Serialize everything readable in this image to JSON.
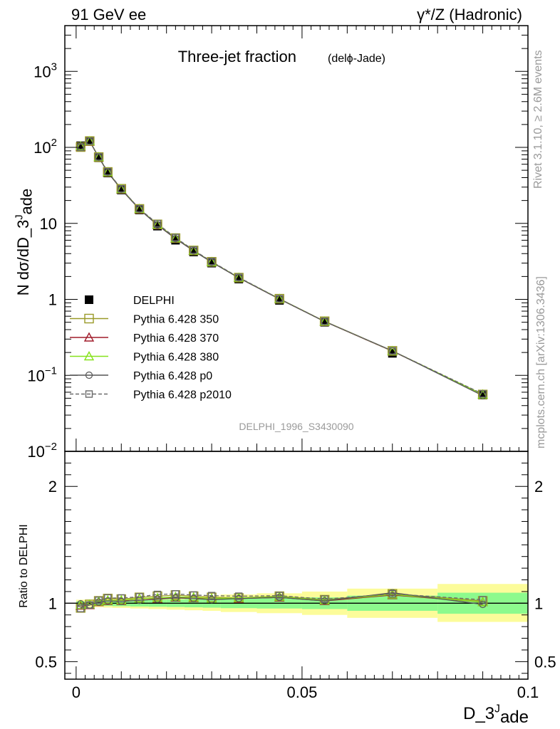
{
  "header": {
    "left": "91 GeV ee",
    "right": "γ*/Z (Hadronic)"
  },
  "side_labels": {
    "rivet": "Rivet 3.1.10, ≥ 2.6M events",
    "mcplots": "mcplots.cern.ch [arXiv:1306.3436]"
  },
  "colors": {
    "p350": "#9a9a28",
    "p370": "#a01b2a",
    "p380": "#86e21b",
    "p0": "#555555",
    "p2010": "#6a6a6a",
    "band_inner": "#8dfa8d",
    "band_outer": "#fcfc9a",
    "data": "#000000",
    "watermark": "#9a9a9a"
  },
  "chart_data": [
    {
      "type": "line",
      "title": "Three-jet fraction",
      "title_suffix": "(delϕ-Jade)",
      "analysis_id": "DELPHI_1996_S3430090",
      "ylabel": "N dσ/dD_3^Jade",
      "yscale": "log",
      "ylim": [
        0.01,
        4000
      ],
      "xlim": [
        -0.0025,
        0.1
      ],
      "yticks": [
        {
          "v": 0.01,
          "base": "10",
          "exp": "−2"
        },
        {
          "v": 0.1,
          "base": "10",
          "exp": "−1"
        },
        {
          "v": 1,
          "base": "1",
          "exp": ""
        },
        {
          "v": 10,
          "base": "10",
          "exp": ""
        },
        {
          "v": 100,
          "base": "10",
          "exp": "2"
        },
        {
          "v": 1000,
          "base": "10",
          "exp": "3"
        }
      ],
      "legend": [
        "DELPHI",
        "Pythia 6.428 350",
        "Pythia 6.428 370",
        "Pythia 6.428 380",
        "Pythia 6.428 p0",
        "Pythia 6.428 p2010"
      ],
      "legend_position": "left",
      "x": [
        0.001,
        0.003,
        0.005,
        0.007,
        0.01,
        0.014,
        0.018,
        0.022,
        0.026,
        0.03,
        0.036,
        0.045,
        0.055,
        0.07,
        0.09
      ],
      "series": [
        {
          "name": "DELPHI",
          "key": "data",
          "marker": "filled-square",
          "values": [
            105,
            122,
            73,
            46,
            27.5,
            15,
            9.2,
            6.0,
            4.2,
            3.0,
            1.85,
            0.97,
            0.5,
            0.195,
            0.055
          ]
        },
        {
          "name": "Pythia 6.428 350",
          "key": "p350",
          "marker": "open-square",
          "values": [
            101,
            121,
            74.5,
            47.5,
            28.5,
            15.5,
            9.7,
            6.4,
            4.4,
            3.12,
            1.93,
            1.02,
            0.515,
            0.21,
            0.056
          ]
        },
        {
          "name": "Pythia 6.428 370",
          "key": "p370",
          "marker": "open-triangle",
          "values": [
            103,
            120,
            74.0,
            47.0,
            28.0,
            15.4,
            9.5,
            6.3,
            4.35,
            3.1,
            1.92,
            1.01,
            0.51,
            0.208,
            0.056
          ]
        },
        {
          "name": "Pythia 6.428 380",
          "key": "p380",
          "marker": "open-triangle",
          "values": [
            104,
            121,
            74.5,
            47.2,
            28.2,
            15.5,
            9.6,
            6.35,
            4.38,
            3.1,
            1.93,
            1.015,
            0.512,
            0.209,
            0.056
          ]
        },
        {
          "name": "Pythia 6.428 p0",
          "key": "p0",
          "marker": "open-circle",
          "values": [
            104.5,
            120,
            74.0,
            47.0,
            28.0,
            15.3,
            9.5,
            6.3,
            4.35,
            3.08,
            1.92,
            1.01,
            0.51,
            0.21,
            0.054
          ]
        },
        {
          "name": "Pythia 6.428 p2010",
          "key": "p2010",
          "marker": "open-square-dashed",
          "values": [
            100,
            121,
            75.0,
            48.0,
            28.5,
            15.6,
            9.9,
            6.5,
            4.45,
            3.15,
            1.95,
            1.02,
            0.515,
            0.21,
            0.057
          ]
        }
      ]
    },
    {
      "type": "line",
      "ylabel": "Ratio to DELPHI",
      "xlabel": "D_3^Jade",
      "ylim": [
        0.35,
        2.3
      ],
      "yticks": [
        0.5,
        1,
        2
      ],
      "ytick_labels": [
        "0.5",
        "1",
        "2"
      ],
      "xticks": [
        0,
        0.05,
        0.1
      ],
      "xtick_labels": [
        "0",
        "0.05",
        "0.1"
      ],
      "bands": {
        "edges": [
          0,
          0.002,
          0.004,
          0.006,
          0.008,
          0.012,
          0.016,
          0.02,
          0.024,
          0.028,
          0.032,
          0.04,
          0.05,
          0.06,
          0.08,
          0.1
        ],
        "inner": [
          0.985,
          0.983,
          0.98,
          0.978,
          0.975,
          0.972,
          0.97,
          0.968,
          0.965,
          0.962,
          0.958,
          0.955,
          0.95,
          0.935,
          0.91
        ],
        "inner_hi": [
          1.015,
          1.017,
          1.02,
          1.022,
          1.025,
          1.028,
          1.03,
          1.032,
          1.035,
          1.038,
          1.042,
          1.045,
          1.05,
          1.065,
          1.09
        ],
        "outer": [
          0.97,
          0.968,
          0.966,
          0.963,
          0.96,
          0.955,
          0.95,
          0.945,
          0.94,
          0.935,
          0.925,
          0.915,
          0.9,
          0.875,
          0.84
        ],
        "outer_hi": [
          1.03,
          1.032,
          1.034,
          1.037,
          1.04,
          1.045,
          1.05,
          1.055,
          1.06,
          1.065,
          1.075,
          1.085,
          1.1,
          1.125,
          1.165
        ]
      },
      "series": [
        {
          "name": "Pythia 6.428 350",
          "key": "p350",
          "values": [
            0.96,
            0.99,
            1.02,
            1.04,
            1.035,
            1.05,
            1.06,
            1.07,
            1.06,
            1.05,
            1.045,
            1.06,
            1.03,
            1.08,
            1.02
          ]
        },
        {
          "name": "Pythia 6.428 370",
          "key": "p370",
          "values": [
            0.98,
            0.985,
            1.01,
            1.02,
            1.02,
            1.04,
            1.04,
            1.05,
            1.045,
            1.04,
            1.04,
            1.05,
            1.02,
            1.07,
            1.01
          ]
        },
        {
          "name": "Pythia 6.428 380",
          "key": "p380",
          "values": [
            0.985,
            0.99,
            1.015,
            1.025,
            1.025,
            1.04,
            1.045,
            1.055,
            1.05,
            1.04,
            1.045,
            1.055,
            1.025,
            1.075,
            1.01
          ]
        },
        {
          "name": "Pythia 6.428 p0",
          "key": "p0",
          "values": [
            0.995,
            0.985,
            1.01,
            1.02,
            1.015,
            1.025,
            1.035,
            1.045,
            1.04,
            1.03,
            1.04,
            1.05,
            1.02,
            1.09,
            0.99
          ]
        },
        {
          "name": "Pythia 6.428 p2010",
          "key": "p2010",
          "values": [
            0.955,
            0.985,
            1.025,
            1.045,
            1.045,
            1.055,
            1.075,
            1.08,
            1.07,
            1.065,
            1.06,
            1.065,
            1.035,
            1.08,
            1.03
          ]
        }
      ]
    }
  ]
}
